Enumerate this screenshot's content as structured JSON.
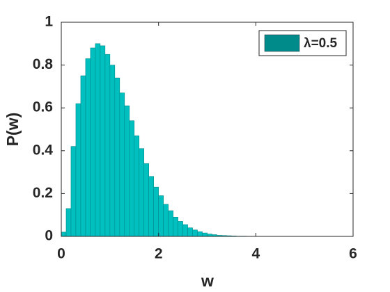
{
  "chart_data": {
    "type": "histogram",
    "xlabel": "w",
    "ylabel": "P(w)",
    "bins": [
      0,
      0.1,
      0.2,
      0.3,
      0.4,
      0.5,
      0.6,
      0.7,
      0.8,
      0.9,
      1,
      1.1,
      1.2,
      1.3,
      1.4,
      1.5,
      1.6,
      1.7,
      1.8,
      1.9,
      2,
      2.1,
      2.2,
      2.3,
      2.4,
      2.5,
      2.6,
      2.7,
      2.8,
      2.9,
      3,
      3.1,
      3.2,
      3.3,
      3.4,
      3.5,
      3.6,
      3.7,
      3.8,
      3.9,
      4
    ],
    "series": [
      {
        "name": "λ=0.5",
        "color": "#00bfbf",
        "edgecolor": "#008b8b",
        "values": [
          0.02,
          0.13,
          0.42,
          0.62,
          0.75,
          0.83,
          0.88,
          0.9,
          0.89,
          0.85,
          0.8,
          0.74,
          0.67,
          0.61,
          0.54,
          0.47,
          0.41,
          0.34,
          0.28,
          0.23,
          0.19,
          0.15,
          0.12,
          0.09,
          0.07,
          0.055,
          0.04,
          0.03,
          0.022,
          0.016,
          0.011,
          0.008,
          0.005,
          0.004,
          0.003,
          0.002,
          0.001,
          0.001,
          0.0005,
          0.0003
        ]
      }
    ],
    "xlim": [
      0,
      6
    ],
    "xticks": [
      0,
      2,
      4,
      6
    ],
    "ylim": [
      0,
      1
    ],
    "yticks": [
      0,
      0.2,
      0.4,
      0.6,
      0.8,
      1
    ],
    "grid": false,
    "legend": "northeast"
  }
}
